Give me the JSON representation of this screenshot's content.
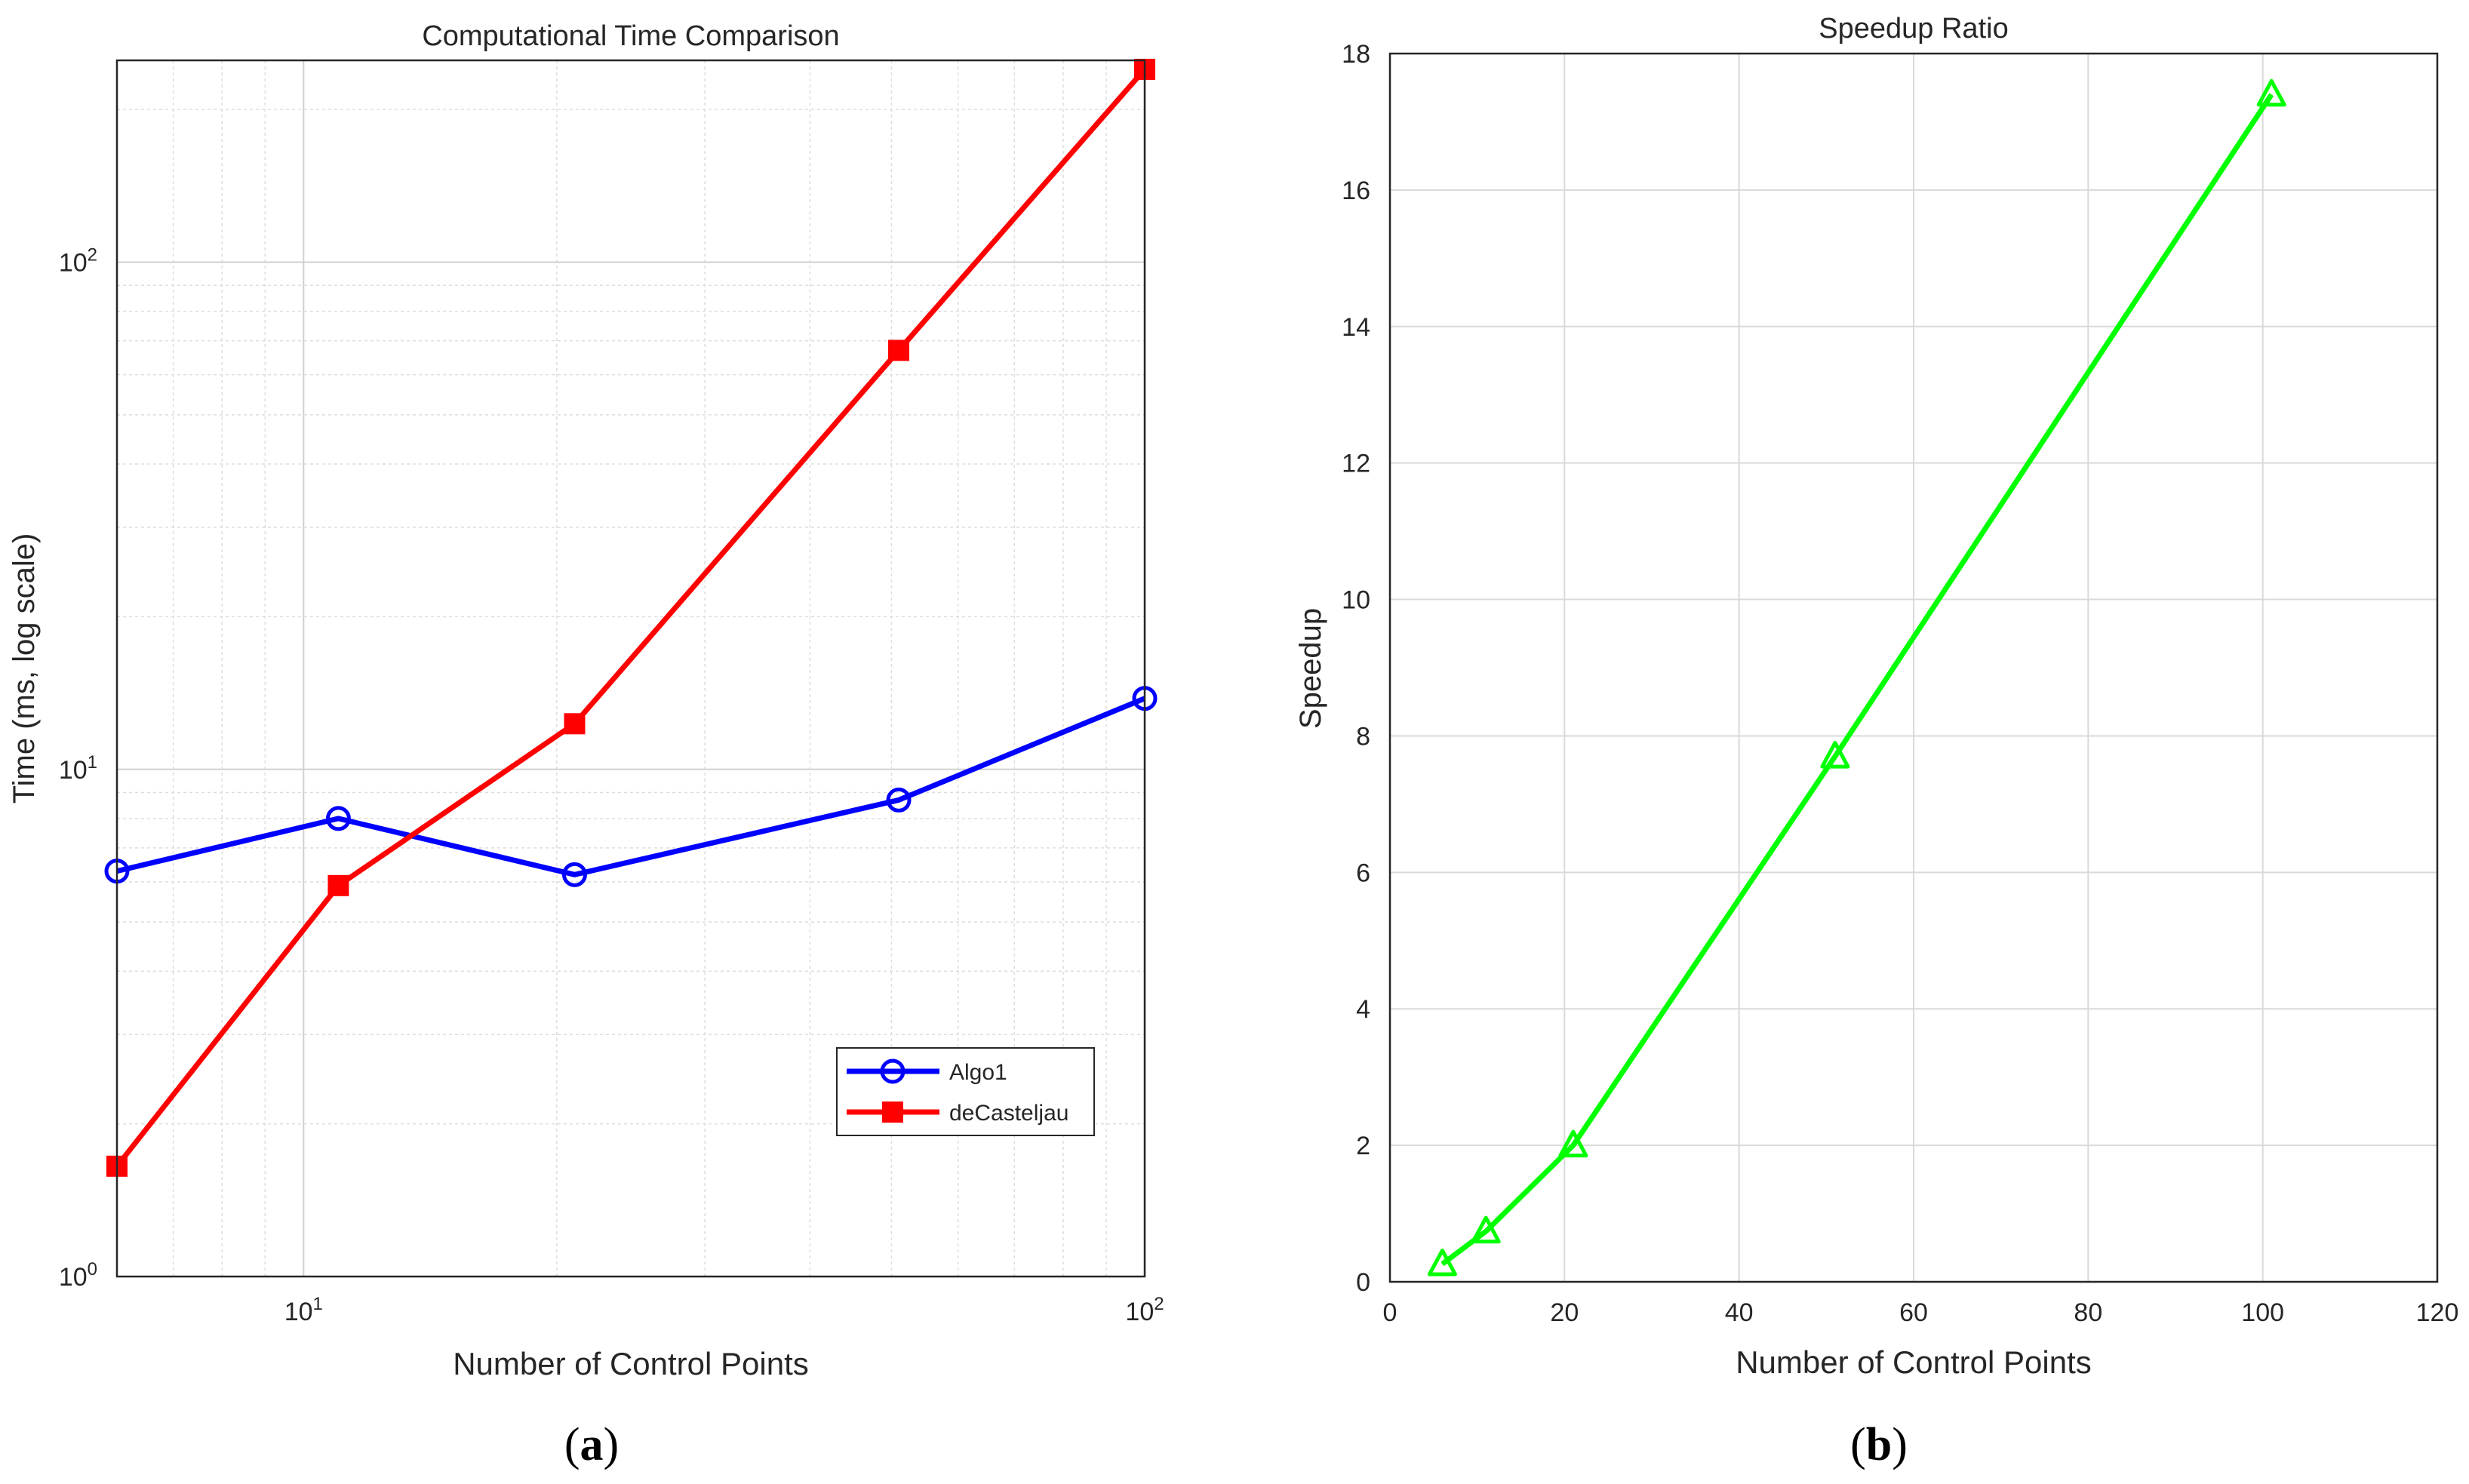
{
  "chart_data": [
    {
      "type": "line",
      "panel_label": "a",
      "title": "Computational Time Comparison",
      "xlabel": "Number of Control Points",
      "ylabel": "Time (ms, log scale)",
      "xscale": "log",
      "yscale": "log",
      "xlim": [
        6,
        100
      ],
      "ylim": [
        1,
        250
      ],
      "xticks": [
        {
          "value": 10,
          "base": "10",
          "exp": "1"
        },
        {
          "value": 100,
          "base": "10",
          "exp": "2"
        }
      ],
      "yticks": [
        {
          "value": 1,
          "base": "10",
          "exp": "0"
        },
        {
          "value": 10,
          "base": "10",
          "exp": "1"
        },
        {
          "value": 100,
          "base": "10",
          "exp": "2"
        }
      ],
      "grid": true,
      "legend_position": "bottom-right",
      "series": [
        {
          "name": "Algo1",
          "color": "#0000ff",
          "marker": "circle",
          "x": [
            6,
            11,
            21,
            51,
            101
          ],
          "y": [
            6.3,
            8.0,
            6.2,
            8.7,
            13.8
          ]
        },
        {
          "name": "deCasteljau",
          "color": "#ff0000",
          "marker": "square",
          "x": [
            6,
            11,
            21,
            51,
            101
          ],
          "y": [
            1.65,
            5.9,
            12.3,
            67,
            240
          ]
        }
      ]
    },
    {
      "type": "line",
      "panel_label": "b",
      "title": "Speedup Ratio",
      "xlabel": "Number of Control Points",
      "ylabel": "Speedup",
      "xscale": "linear",
      "yscale": "linear",
      "xlim": [
        0,
        120
      ],
      "ylim": [
        0,
        18
      ],
      "xticks": [
        0,
        20,
        40,
        60,
        80,
        100,
        120
      ],
      "yticks": [
        0,
        2,
        4,
        6,
        8,
        10,
        12,
        14,
        16,
        18
      ],
      "grid": true,
      "series": [
        {
          "name": "Speedup",
          "color": "#00ff00",
          "marker": "triangle",
          "x": [
            6,
            11,
            21,
            51,
            101
          ],
          "y": [
            0.26,
            0.74,
            2.0,
            7.7,
            17.4
          ]
        }
      ]
    }
  ]
}
